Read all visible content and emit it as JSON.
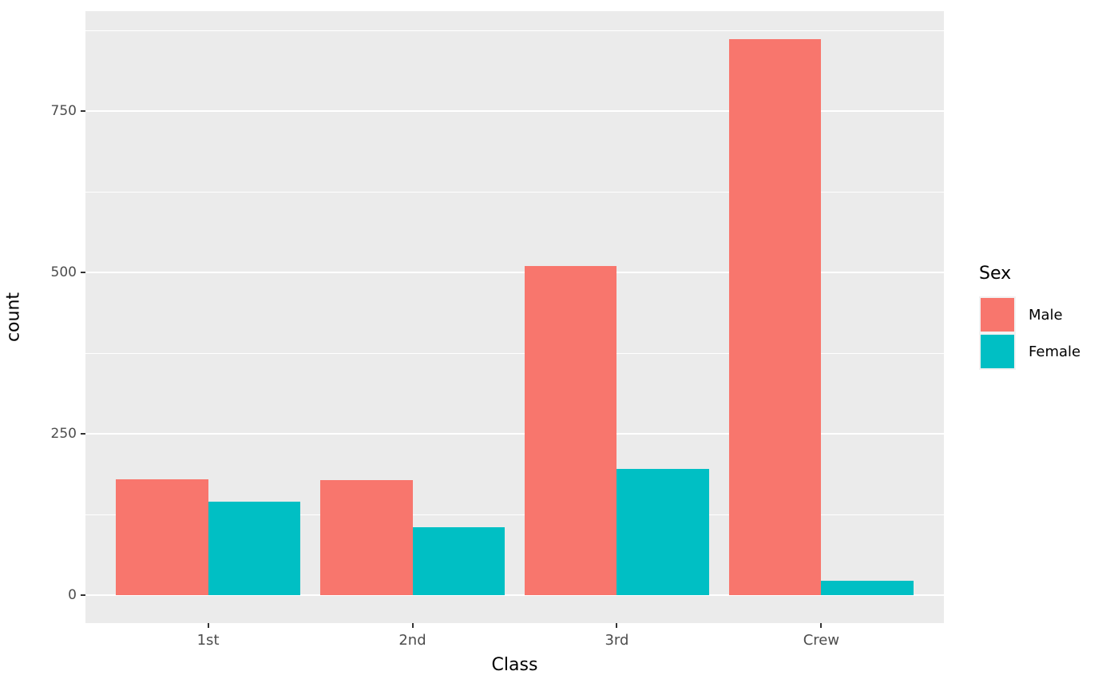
{
  "chart_data": {
    "type": "bar",
    "title": "",
    "xlabel": "Class",
    "ylabel": "count",
    "categories": [
      "1st",
      "2nd",
      "3rd",
      "Crew"
    ],
    "series": [
      {
        "name": "Male",
        "color": "#F8766D",
        "values": [
          180,
          179,
          510,
          862
        ]
      },
      {
        "name": "Female",
        "color": "#00BFC4",
        "values": [
          145,
          106,
          196,
          23
        ]
      }
    ],
    "legend": {
      "title": "Sex",
      "position": "right"
    },
    "y_ticks": [
      0,
      250,
      500,
      750
    ],
    "y_minor_ticks": [
      125,
      375,
      625,
      875
    ],
    "ylim": [
      -43,
      905
    ],
    "bar_mode": "dodge",
    "grid": true,
    "panel_bg": "#EBEBEB",
    "grid_color": "#FFFFFF",
    "tick_label_color": "#4D4D4D"
  }
}
